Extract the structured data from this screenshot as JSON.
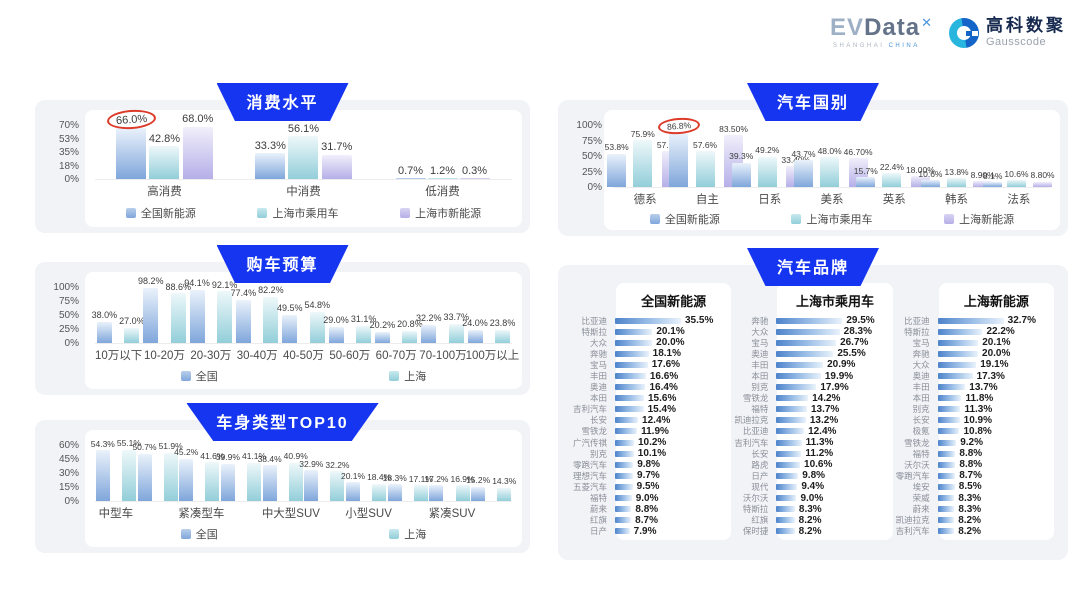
{
  "header": {
    "evdata_ev": "EV",
    "evdata_data": "Data",
    "evdata_sup": "✕",
    "evdata_sub_1": "SHANGHAI",
    "evdata_sub_2": "CHINA",
    "gausscode_cn": "高科数聚",
    "gausscode_en": "Gausscode"
  },
  "colors": {
    "banner_blue": "#1635f0",
    "series_blue": "#7fa6db",
    "series_teal": "#92ced9",
    "series_purple": "#b5afe8",
    "annotation_red": "#dd3b2a",
    "card_gray": "#f1f3f6"
  },
  "chart_data": [
    {
      "id": "consumption",
      "type": "bar",
      "title": "消费水平",
      "categories": [
        "高消费",
        "中消费",
        "低消费"
      ],
      "series": [
        {
          "name": "全国新能源",
          "values": [
            66.0,
            33.3,
            0.7
          ],
          "labels": [
            "66.0%",
            "33.3%",
            "0.7%"
          ]
        },
        {
          "name": "上海市乘用车",
          "values": [
            42.8,
            56.1,
            1.2
          ],
          "labels": [
            "42.8%",
            "56.1%",
            "1.2%"
          ]
        },
        {
          "name": "上海市新能源",
          "values": [
            68.0,
            31.7,
            0.3
          ],
          "labels": [
            "68.0%",
            "31.7%",
            "0.3%"
          ]
        }
      ],
      "yticks": [
        "70%",
        "53%",
        "35%",
        "18%",
        "0%"
      ],
      "ylim": [
        0,
        70
      ],
      "grid": false,
      "legend_position": "bottom",
      "circled": {
        "series": 0,
        "category": 0,
        "note": "red ellipse annotation around 66.0%"
      }
    },
    {
      "id": "budget",
      "type": "bar",
      "title": "购车预算",
      "categories": [
        "10万以下",
        "10-20万",
        "20-30万",
        "30-40万",
        "40-50万",
        "50-60万",
        "60-70万",
        "70-100万",
        "100万以上"
      ],
      "series": [
        {
          "name": "全国",
          "values": [
            38.0,
            98.2,
            94.1,
            77.4,
            49.5,
            29.0,
            20.2,
            32.2,
            24.0
          ],
          "labels": [
            "38.0%",
            "98.2%",
            "94.1%",
            "77.4%",
            "49.5%",
            "29.0%",
            "20.2%",
            "32.2%",
            "24.0%"
          ]
        },
        {
          "name": "上海",
          "values": [
            27.0,
            88.6,
            92.1,
            82.2,
            54.8,
            31.1,
            20.8,
            33.7,
            23.8
          ],
          "labels": [
            "27.0%",
            "88.6%",
            "92.1%",
            "82.2%",
            "54.8%",
            "31.1%",
            "20.8%",
            "33.7%",
            "23.8%"
          ]
        }
      ],
      "yticks": [
        "100%",
        "75%",
        "50%",
        "25%",
        "0%"
      ],
      "ylim": [
        0,
        100
      ],
      "grid": false,
      "legend_position": "bottom"
    },
    {
      "id": "bodytype",
      "type": "bar",
      "title": "车身类型TOP10",
      "categories": [
        "中型车",
        "",
        "紧凑型车",
        "",
        "中大型SUV",
        "",
        "小型SUV",
        "",
        "紧凑SUV",
        ""
      ],
      "series": [
        {
          "name": "全国",
          "values": [
            54.3,
            50.7,
            45.2,
            39.9,
            38.4,
            32.9,
            20.1,
            18.3,
            17.2,
            15.2
          ],
          "labels": [
            "54.3%",
            "50.7%",
            "45.2%",
            "39.9%",
            "38.4%",
            "32.9%",
            "20.1%",
            "18.3%",
            "17.2%",
            "15.2%"
          ]
        },
        {
          "name": "上海",
          "values": [
            55.1,
            51.9,
            41.6,
            41.1,
            40.9,
            32.2,
            18.4,
            17.1,
            16.9,
            14.3
          ],
          "labels": [
            "55.1%",
            "51.9%",
            "41.6%",
            "41.1%",
            "40.9%",
            "32.2%",
            "18.4%",
            "17.1%",
            "16.9%",
            "14.3%"
          ]
        }
      ],
      "yticks": [
        "60%",
        "45%",
        "30%",
        "15%",
        "0%"
      ],
      "ylim": [
        0,
        60
      ],
      "grid": false,
      "legend_position": "bottom"
    },
    {
      "id": "country",
      "type": "bar",
      "title": "汽车国别",
      "categories": [
        "德系",
        "自主",
        "日系",
        "美系",
        "英系",
        "韩系",
        "法系"
      ],
      "series": [
        {
          "name": "全国新能源",
          "values": [
            53.8,
            86.8,
            39.3,
            43.7,
            15.7,
            10.6,
            8.1
          ],
          "labels": [
            "53.8%",
            "86.8%",
            "39.3%",
            "43.7%",
            "15.7%",
            "10.6%",
            "8.1%"
          ]
        },
        {
          "name": "上海市乘用车",
          "values": [
            75.9,
            57.6,
            49.2,
            48.0,
            22.4,
            13.8,
            10.6
          ],
          "labels": [
            "75.9%",
            "57.6%",
            "49.2%",
            "48.0%",
            "22.4%",
            "13.8%",
            "10.6%"
          ]
        },
        {
          "name": "上海新能源",
          "values": [
            57.7,
            83.5,
            33.4,
            46.7,
            18.0,
            8.9,
            8.8
          ],
          "labels": [
            "57.70%",
            "83.50%",
            "33.40%",
            "46.70%",
            "18.00%",
            "8.90%",
            "8.80%"
          ]
        }
      ],
      "yticks": [
        "100%",
        "75%",
        "50%",
        "25%",
        "0%"
      ],
      "ylim": [
        0,
        100
      ],
      "grid": false,
      "legend_position": "bottom",
      "circled": {
        "series": 0,
        "category": 1,
        "note": "red ellipse annotation around 86.8%"
      }
    },
    {
      "id": "brands",
      "type": "table",
      "title": "汽车品牌",
      "lists": [
        {
          "title": "全国新能源",
          "items": [
            {
              "name": "比亚迪",
              "value": "35.5%"
            },
            {
              "name": "特斯拉",
              "value": "20.1%"
            },
            {
              "name": "大众",
              "value": "20.0%"
            },
            {
              "name": "奔驰",
              "value": "18.1%"
            },
            {
              "name": "宝马",
              "value": "17.6%"
            },
            {
              "name": "丰田",
              "value": "16.6%"
            },
            {
              "name": "奥迪",
              "value": "16.4%"
            },
            {
              "name": "本田",
              "value": "15.6%"
            },
            {
              "name": "吉利汽车",
              "value": "15.4%"
            },
            {
              "name": "长安",
              "value": "12.4%"
            },
            {
              "name": "雪铁龙",
              "value": "11.9%"
            },
            {
              "name": "广汽传祺",
              "value": "10.2%"
            },
            {
              "name": "别克",
              "value": "10.1%"
            },
            {
              "name": "零跑汽车",
              "value": "9.8%"
            },
            {
              "name": "理想汽车",
              "value": "9.7%"
            },
            {
              "name": "五菱汽车",
              "value": "9.5%"
            },
            {
              "name": "福特",
              "value": "9.0%"
            },
            {
              "name": "蔚来",
              "value": "8.8%"
            },
            {
              "name": "红旗",
              "value": "8.7%"
            },
            {
              "name": "日产",
              "value": "7.9%"
            }
          ]
        },
        {
          "title": "上海市乘用车",
          "items": [
            {
              "name": "奔驰",
              "value": "29.5%"
            },
            {
              "name": "大众",
              "value": "28.3%"
            },
            {
              "name": "宝马",
              "value": "26.7%"
            },
            {
              "name": "奥迪",
              "value": "25.5%"
            },
            {
              "name": "丰田",
              "value": "20.9%"
            },
            {
              "name": "本田",
              "value": "19.9%"
            },
            {
              "name": "别克",
              "value": "17.9%"
            },
            {
              "name": "雪铁龙",
              "value": "14.2%"
            },
            {
              "name": "福特",
              "value": "13.7%"
            },
            {
              "name": "凯迪拉克",
              "value": "13.2%"
            },
            {
              "name": "比亚迪",
              "value": "12.4%"
            },
            {
              "name": "吉利汽车",
              "value": "11.3%"
            },
            {
              "name": "长安",
              "value": "11.2%"
            },
            {
              "name": "路虎",
              "value": "10.6%"
            },
            {
              "name": "日产",
              "value": "9.8%"
            },
            {
              "name": "现代",
              "value": "9.4%"
            },
            {
              "name": "沃尔沃",
              "value": "9.0%"
            },
            {
              "name": "特斯拉",
              "value": "8.3%"
            },
            {
              "name": "红旗",
              "value": "8.2%"
            },
            {
              "name": "保时捷",
              "value": "8.2%"
            }
          ]
        },
        {
          "title": "上海新能源",
          "items": [
            {
              "name": "比亚迪",
              "value": "32.7%"
            },
            {
              "name": "特斯拉",
              "value": "22.2%"
            },
            {
              "name": "宝马",
              "value": "20.1%"
            },
            {
              "name": "奔驰",
              "value": "20.0%"
            },
            {
              "name": "大众",
              "value": "19.1%"
            },
            {
              "name": "奥迪",
              "value": "17.3%"
            },
            {
              "name": "丰田",
              "value": "13.7%"
            },
            {
              "name": "本田",
              "value": "11.8%"
            },
            {
              "name": "别克",
              "value": "11.3%"
            },
            {
              "name": "长安",
              "value": "10.9%"
            },
            {
              "name": "极氪",
              "value": "10.8%"
            },
            {
              "name": "雪铁龙",
              "value": "9.2%"
            },
            {
              "name": "福特",
              "value": "8.8%"
            },
            {
              "name": "沃尔沃",
              "value": "8.8%"
            },
            {
              "name": "零跑汽车",
              "value": "8.7%"
            },
            {
              "name": "埃安",
              "value": "8.5%"
            },
            {
              "name": "荣威",
              "value": "8.3%"
            },
            {
              "name": "蔚来",
              "value": "8.3%"
            },
            {
              "name": "凯迪拉克",
              "value": "8.2%"
            },
            {
              "name": "吉利汽车",
              "value": "8.2%"
            }
          ]
        }
      ]
    }
  ]
}
